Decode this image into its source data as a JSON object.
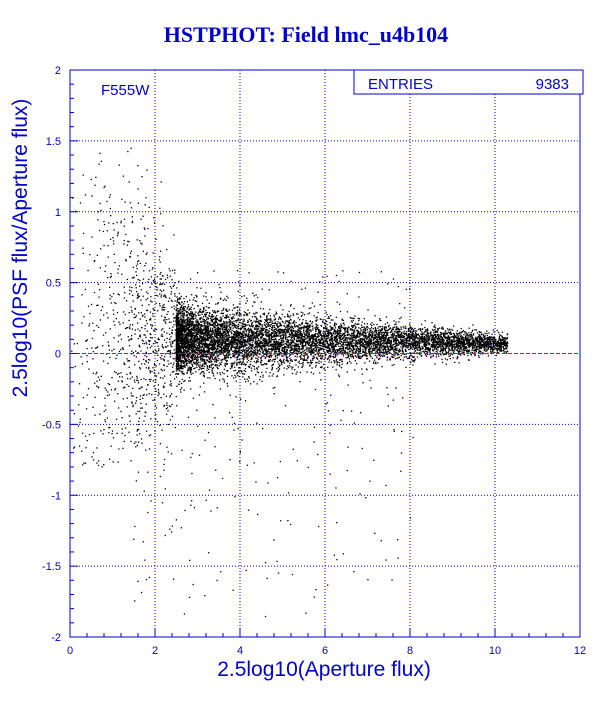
{
  "chart_data": {
    "type": "scatter",
    "title": "HSTPHOT: Field lmc_u4b104",
    "xlabel": "2.5log10(Aperture flux)",
    "ylabel": "2.5log10(PSF flux/Aperture flux)",
    "xlim": [
      0,
      12
    ],
    "ylim": [
      -2,
      2
    ],
    "x_ticks": [
      "0",
      "2",
      "4",
      "6",
      "8",
      "10",
      "12"
    ],
    "y_ticks": [
      "-2",
      "-1.5",
      "-1",
      "-0.5",
      "0",
      "0.5",
      "1",
      "1.5",
      "2"
    ],
    "grid": true,
    "filter_label": "F555W",
    "stats": {
      "label": "ENTRIES",
      "value": "9383"
    },
    "reference_line": {
      "y": 0
    },
    "n_points": 9383,
    "distribution": {
      "core": {
        "x_range": [
          2.5,
          10.3
        ],
        "y_center": 0.1,
        "y_spread_bright": 0.12,
        "y_spread_faint": 0.03
      },
      "faint_tail": {
        "x_range": [
          0,
          2.5
        ],
        "y_range": [
          -0.8,
          1.5
        ]
      },
      "outliers": {
        "x_range": [
          1.5,
          8.2
        ],
        "y_range": [
          -2,
          0.6
        ]
      }
    },
    "colors": {
      "axis": "#0000cc",
      "title": "#0000cc",
      "grid": "#0000cc",
      "points": "#000000",
      "reference_line": "#ff0000"
    }
  }
}
